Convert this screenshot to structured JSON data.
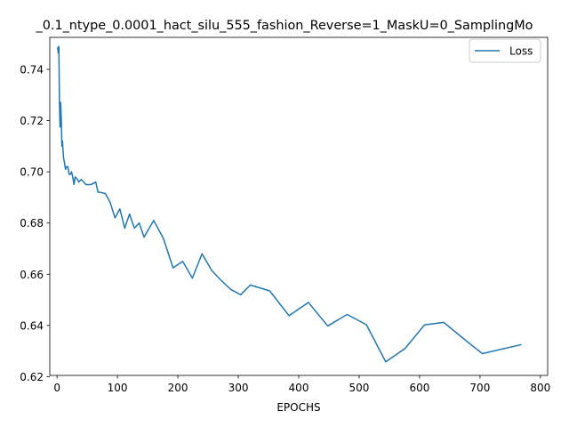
{
  "chart_data": {
    "type": "line",
    "title": "_0.1_ntype_0.0001_hact_silu_555_fashion_Reverse=1_MaskU=0_SamplingMo",
    "xlabel": "EPOCHS",
    "ylabel": "",
    "xlim": [
      -12,
      812
    ],
    "ylim": [
      0.6205,
      0.7525
    ],
    "xticks": [
      0,
      100,
      200,
      300,
      400,
      500,
      600,
      700,
      800
    ],
    "xtick_labels": [
      "0",
      "100",
      "200",
      "300",
      "400",
      "500",
      "600",
      "700",
      "800"
    ],
    "yticks": [
      0.62,
      0.64,
      0.66,
      0.68,
      0.7,
      0.72,
      0.74
    ],
    "ytick_labels": [
      "0.62",
      "0.64",
      "0.66",
      "0.68",
      "0.70",
      "0.72",
      "0.74"
    ],
    "grid": false,
    "legend_position": "top-right",
    "series": [
      {
        "name": "Loss",
        "color": "#1f77b4",
        "x": [
          1,
          2,
          3,
          4,
          5,
          6,
          7,
          8,
          9,
          10,
          11,
          12,
          14,
          16,
          18,
          20,
          22,
          24,
          26,
          28,
          30,
          32,
          34,
          36,
          40,
          44,
          48,
          52,
          56,
          60,
          64,
          68,
          72,
          80,
          88,
          96,
          104,
          112,
          120,
          128,
          136,
          144,
          160,
          176,
          192,
          208,
          224,
          240,
          256,
          272,
          288,
          304,
          320,
          352,
          384,
          416,
          448,
          480,
          512,
          544,
          576,
          608,
          640,
          672,
          704,
          768
        ],
        "y": [
          0.7485,
          0.7465,
          0.749,
          0.7275,
          0.7175,
          0.727,
          0.721,
          0.71,
          0.712,
          0.708,
          0.705,
          0.704,
          0.701,
          0.702,
          0.702,
          0.699,
          0.699,
          0.7,
          0.698,
          0.695,
          0.698,
          0.6975,
          0.697,
          0.696,
          0.697,
          0.696,
          0.695,
          0.695,
          0.695,
          0.6955,
          0.696,
          0.692,
          0.692,
          0.6915,
          0.688,
          0.682,
          0.6855,
          0.678,
          0.6835,
          0.678,
          0.68,
          0.6745,
          0.681,
          0.674,
          0.6625,
          0.665,
          0.6585,
          0.668,
          0.6615,
          0.6575,
          0.654,
          0.652,
          0.6558,
          0.6535,
          0.6438,
          0.649,
          0.6398,
          0.6443,
          0.6403,
          0.6258,
          0.631,
          0.6402,
          0.6412,
          0.635,
          0.629,
          0.6325
        ]
      }
    ]
  }
}
